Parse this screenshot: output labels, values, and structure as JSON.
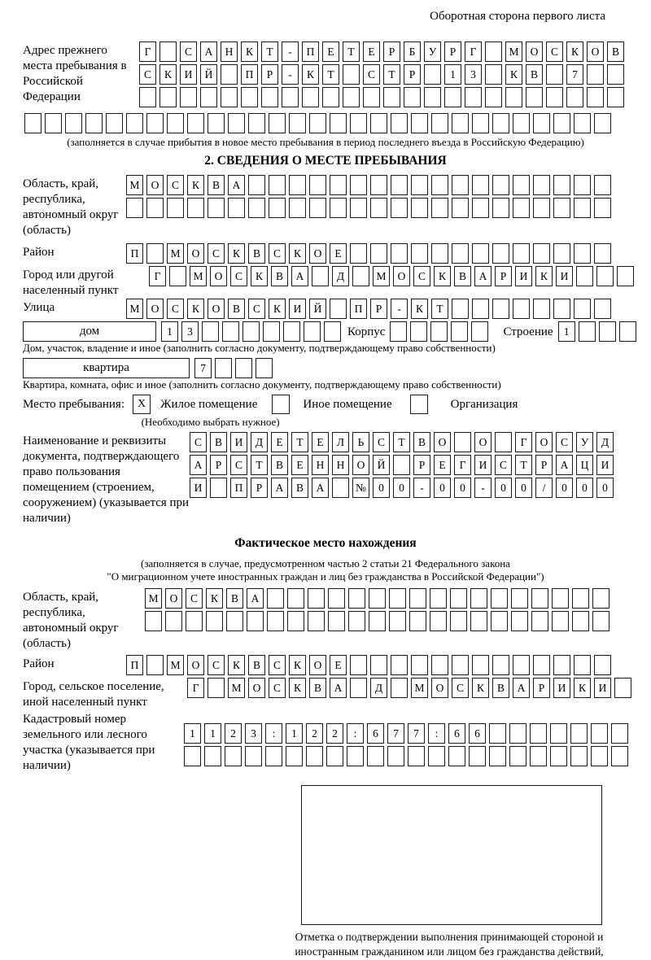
{
  "page": {
    "header_note": "Оборотная сторона первого листа"
  },
  "prev_address": {
    "label": "Адрес прежнего места пребывания в Российской Федерации",
    "rows": [
      {
        "len": 24,
        "text": "Г САНКТ-ПЕТЕРБУРГ МОСКОВ"
      },
      {
        "len": 24,
        "text": "СКИЙ ПР-КТ СТР 13 КВ 7"
      },
      {
        "len": 24,
        "text": ""
      },
      {
        "len": 29,
        "text": ""
      }
    ],
    "note": "(заполняется в случае прибытия в новое место пребывания в период последнего въезда в Российскую Федерацию)"
  },
  "section2": {
    "title": "2. СВЕДЕНИЯ О МЕСТЕ ПРЕБЫВАНИЯ",
    "region": {
      "label": "Область, край, республика, автономный округ (область)",
      "rows": [
        {
          "len": 24,
          "text": "МОСКВА"
        },
        {
          "len": 24,
          "text": ""
        }
      ]
    },
    "district": {
      "label": "Район",
      "row": {
        "len": 24,
        "text": "П МОСКВСКОЕ"
      }
    },
    "city": {
      "label": "Город или другой населенный пункт",
      "row": {
        "len": 24,
        "text": "Г МОСКВА Д МОСКВАРИКИ"
      }
    },
    "street": {
      "label": "Улица",
      "row": {
        "len": 24,
        "text": "МОСКОВСКИЙ ПР-КТ"
      }
    },
    "house": {
      "box_label": "дом",
      "cells": {
        "len": 9,
        "text": "13"
      },
      "korpus_label": "Корпус",
      "korpus_cells": {
        "len": 5,
        "text": ""
      },
      "stroenie_label": "Строение",
      "stroenie_cells": {
        "len": 4,
        "text": "1"
      }
    },
    "house_note": "Дом, участок, владение и иное (заполнить согласно документу, подтверждающему право собственности)",
    "apartment": {
      "box_label": "квартира",
      "cells": {
        "len": 4,
        "text": "7"
      }
    },
    "apartment_note": "Квартира, комната, офис и иное (заполнить согласно документу, подтверждающему право собственности)",
    "stay_type": {
      "label": "Место пребывания:",
      "options": [
        {
          "label": "Жилое помещение",
          "mark": "X"
        },
        {
          "label": "Иное помещение",
          "mark": ""
        },
        {
          "label": "Организация",
          "mark": ""
        }
      ],
      "note": "(Необходимо выбрать нужное)"
    },
    "document": {
      "label": "Наименование и реквизиты документа, подтверждающего право пользования помещением (строением, сооружением) (указывается при наличии)",
      "rows": [
        {
          "len": 21,
          "text": "СВИДЕТЕЛЬСТВО О ГОСУД"
        },
        {
          "len": 21,
          "text": "АРСТВЕННОЙ РЕГИСТРАЦИ"
        },
        {
          "len": 21,
          "text": "И ПРАВА №00-00-00/000"
        }
      ]
    }
  },
  "actual_location": {
    "title": "Фактическое место нахождения",
    "note1": "(заполняется в случае, предусмотренном частью 2 статьи 21 Федерального закона",
    "note2": "\"О миграционном учете иностранных граждан и лиц без гражданства в Российской Федерации\")",
    "region": {
      "label": "Область, край, республика, автономный округ (область)",
      "rows": [
        {
          "len": 23,
          "text": "МОСКВА"
        },
        {
          "len": 23,
          "text": ""
        }
      ]
    },
    "district": {
      "label": "Район",
      "row": {
        "len": 24,
        "text": "П МОСКВСКОЕ"
      }
    },
    "city": {
      "label": "Город, сельское поселение, иной населенный пункт",
      "row": {
        "len": 22,
        "text": "Г МОСКВА Д МОСКВАРИКИ"
      }
    },
    "cadastral": {
      "label": "Кадастровый номер земельного или лесного участка (указывается при наличии)",
      "rows": [
        {
          "len": 22,
          "text": "1123:122:677:66"
        },
        {
          "len": 22,
          "text": ""
        }
      ]
    },
    "stamp_note": "Отметка о подтверждении выполнения принимающей стороной и иностранным гражданином или лицом без гражданства действий, необходимых для его постановки на учет по месту пребывания"
  }
}
